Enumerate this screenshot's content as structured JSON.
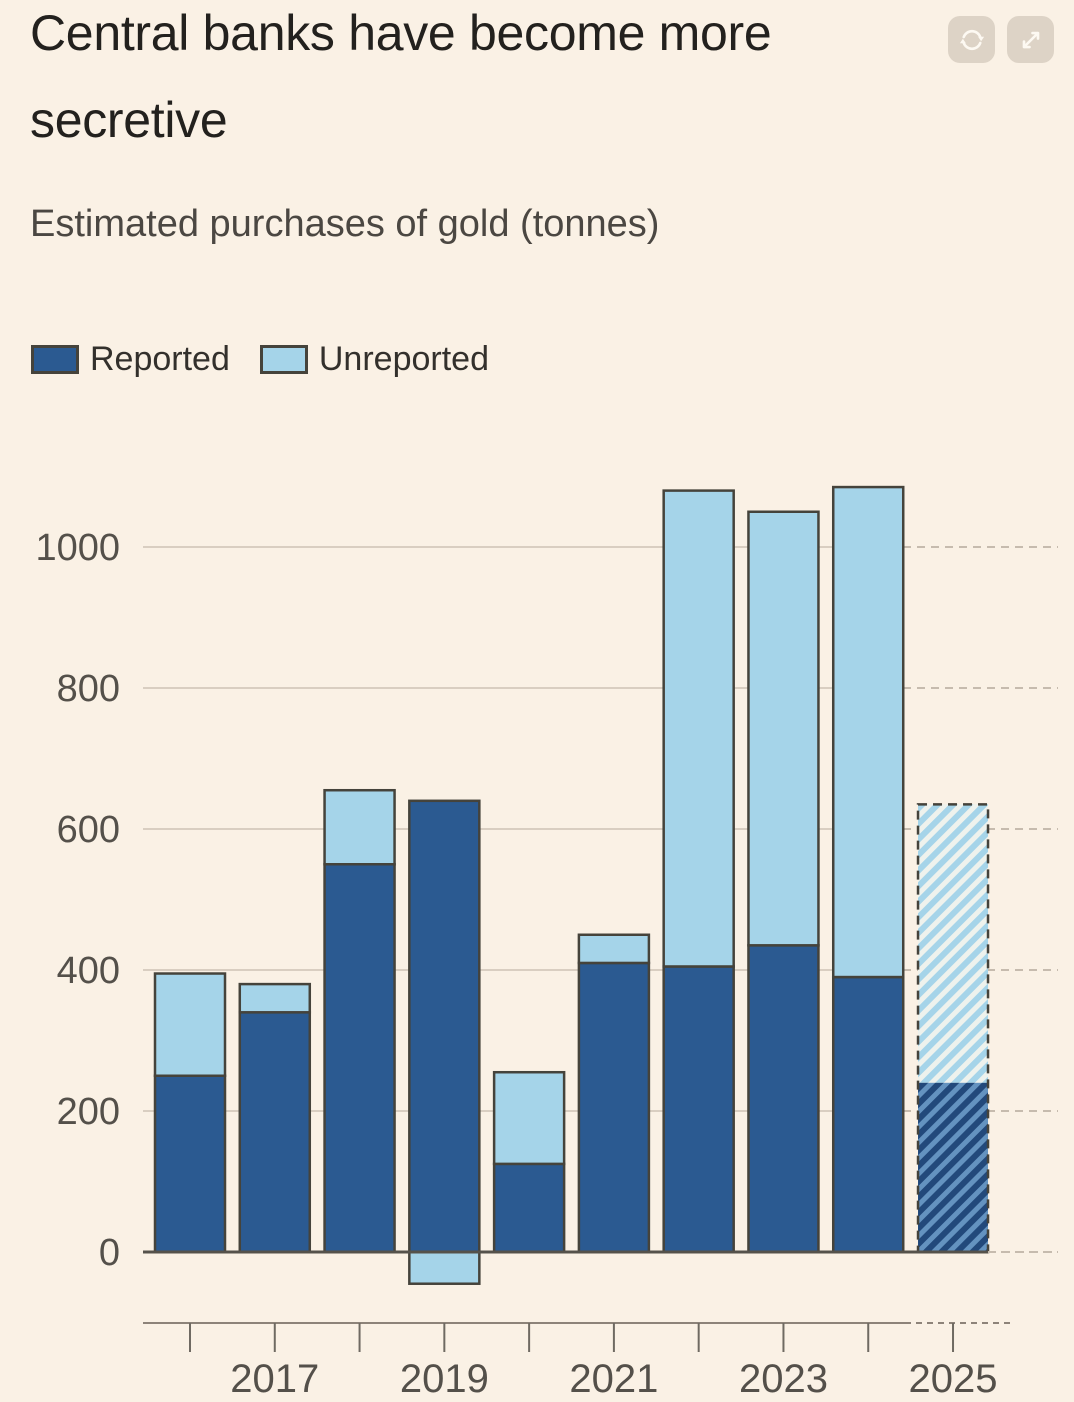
{
  "header": {
    "title": "Central banks have become more secretive",
    "subtitle": "Estimated purchases of gold (tonnes)",
    "actions": [
      {
        "name": "refresh",
        "icon": "refresh-icon"
      },
      {
        "name": "expand",
        "icon": "expand-icon"
      }
    ]
  },
  "legend": [
    {
      "label": "Reported",
      "color": "#2b5a91"
    },
    {
      "label": "Unreported",
      "color": "#a5d4e9"
    }
  ],
  "chart_data": {
    "type": "bar",
    "stacked": true,
    "title": "Central banks have become more secretive",
    "subtitle": "Estimated purchases of gold (tonnes)",
    "unit": "tonnes",
    "categories": [
      "2016",
      "2017",
      "2018",
      "2019",
      "2020",
      "2021",
      "2022",
      "2023",
      "2024",
      "2025"
    ],
    "series": [
      {
        "name": "Reported",
        "values": [
          250,
          340,
          550,
          640,
          125,
          410,
          405,
          435,
          390,
          240
        ]
      },
      {
        "name": "Unreported",
        "values": [
          145,
          40,
          105,
          -45,
          130,
          40,
          675,
          615,
          695,
          395
        ]
      }
    ],
    "forecast_categories": [
      "2025"
    ],
    "x_axis_labels": [
      "2017",
      "2019",
      "2021",
      "2023",
      "2025"
    ],
    "y_ticks": [
      0,
      200,
      400,
      600,
      800,
      1000
    ],
    "ylim": [
      -100,
      1130
    ],
    "grid": "horizontal",
    "legend_position": "top-left"
  },
  "colors": {
    "background": "#faf1e5",
    "reported": "#2b5a91",
    "unreported": "#a5d4e9",
    "bar_border": "#45433b",
    "grid": "#d9cec1",
    "grid_dashed": "#c6bbae",
    "zero_line": "#55524b",
    "axis_line": "#8d8379",
    "tick": "#6f6a62",
    "title_text": "#23211e",
    "subtitle_text": "#4b4742",
    "legend_text": "#33302c",
    "label_text": "#54504a",
    "hatch_light_bg": "#a5d4e9",
    "hatch_light_stripe": "#eef2ed",
    "hatch_dark_bg": "#22497b",
    "hatch_dark_stripe": "#6493c0",
    "button_bg": "#ddd3c6",
    "button_icon": "#fdf9f2"
  }
}
